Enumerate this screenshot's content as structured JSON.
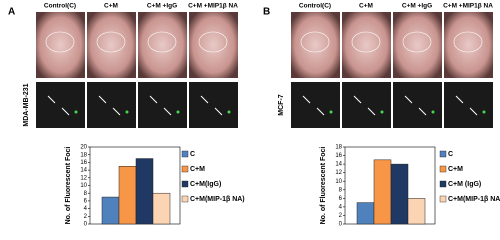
{
  "panels": [
    {
      "label": "A",
      "cell_line": "MDA-MB-231",
      "column_labels": [
        "Control(C)",
        "C+M",
        "C+M +IgG",
        "C+M +MIP1β NA"
      ]
    },
    {
      "label": "B",
      "cell_line": "MCF-7",
      "column_labels": [
        "Control(C)",
        "C+M",
        "C+M +IgG",
        "C+M +MIP1β NA"
      ]
    }
  ],
  "chart_data": [
    {
      "type": "bar",
      "y_label": "No. of Fluorescent Foci",
      "ylim": [
        0,
        20
      ],
      "yticks": [
        0,
        2,
        4,
        6,
        8,
        10,
        12,
        14,
        16,
        18,
        20
      ],
      "series": [
        {
          "name": "C",
          "color": "#4f81bd",
          "values": [
            7
          ]
        },
        {
          "name": "C+M",
          "color": "#f79646",
          "values": [
            15
          ]
        },
        {
          "name": "C+M(IgG)",
          "color": "#1f3864",
          "values": [
            17
          ]
        },
        {
          "name": "C+M(MIP-1β NA)",
          "color": "#fbd4b4",
          "values": [
            8
          ]
        }
      ]
    },
    {
      "type": "bar",
      "y_label": "No. of Fluorescent Foci",
      "ylim": [
        0,
        18
      ],
      "yticks": [
        0,
        2,
        4,
        6,
        8,
        10,
        12,
        14,
        16,
        18
      ],
      "series": [
        {
          "name": "C",
          "color": "#4f81bd",
          "values": [
            5
          ]
        },
        {
          "name": "C+M",
          "color": "#f79646",
          "values": [
            15
          ]
        },
        {
          "name": "C+M (IgG)",
          "color": "#1f3864",
          "values": [
            14
          ]
        },
        {
          "name": "C+M(MIP-1β NA)",
          "color": "#fbd4b4",
          "values": [
            6
          ]
        }
      ]
    }
  ]
}
